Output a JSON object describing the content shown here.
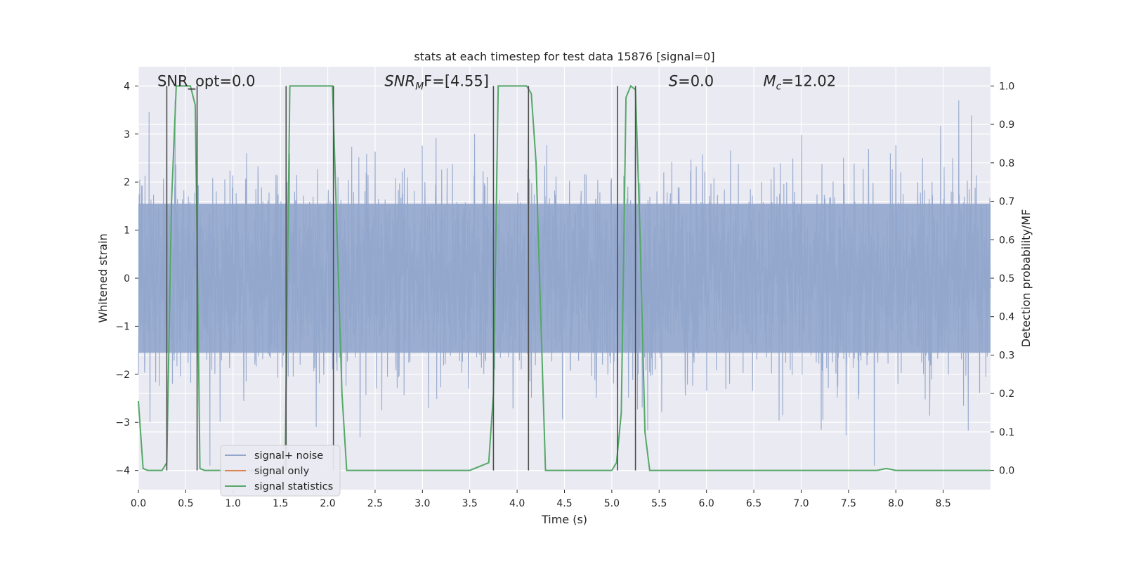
{
  "chart_data": {
    "type": "line",
    "title": "stats at each timestep for test data 15876 [signal=0]",
    "xlabel": "Time (s)",
    "ylabel": "Whitened strain",
    "y2label": "Detection probability/MF",
    "xlim": [
      0,
      9.0
    ],
    "ylim": [
      -4.4,
      4.4
    ],
    "y2lim": [
      -0.05,
      1.05
    ],
    "x_ticks": [
      0.0,
      0.5,
      1.0,
      1.5,
      2.0,
      2.5,
      3.0,
      3.5,
      4.0,
      4.5,
      5.0,
      5.5,
      6.0,
      6.5,
      7.0,
      7.5,
      8.0,
      8.5
    ],
    "x_tick_labels": [
      "0.0",
      "0.5",
      "1.0",
      "1.5",
      "2.0",
      "2.5",
      "3.0",
      "3.5",
      "4.0",
      "4.5",
      "5.0",
      "5.5",
      "6.0",
      "6.5",
      "7.0",
      "7.5",
      "8.0",
      "8.5"
    ],
    "y_ticks": [
      -4,
      -3,
      -2,
      -1,
      0,
      1,
      2,
      3,
      4
    ],
    "y_tick_labels": [
      "−4",
      "−3",
      "−2",
      "−1",
      "0",
      "1",
      "2",
      "3",
      "4"
    ],
    "y2_ticks": [
      0.0,
      0.1,
      0.2,
      0.3,
      0.4,
      0.5,
      0.6,
      0.7,
      0.8,
      0.9,
      1.0
    ],
    "y2_tick_labels": [
      "0.0",
      "0.1",
      "0.2",
      "0.3",
      "0.4",
      "0.5",
      "0.6",
      "0.7",
      "0.8",
      "0.9",
      "1.0"
    ],
    "grid": true,
    "legend_position": "lower-left",
    "annotations": [
      {
        "text": "SNR_opt=0.0",
        "x": 0.2,
        "y": 4.1
      },
      {
        "text": "SNR_MF=[4.55]",
        "x": 2.6,
        "y": 4.1,
        "main": "SNR",
        "sub": "M",
        "tail": "F=[4.55]"
      },
      {
        "text": "S=0.0",
        "x": 5.6,
        "y": 4.1,
        "main": "S",
        "tail": "=0.0"
      },
      {
        "text": "M_c=12.02",
        "x": 6.6,
        "y": 4.1,
        "main": "M",
        "sub": "c",
        "tail": "=12.02"
      }
    ],
    "series": [
      {
        "name": "signal+ noise",
        "color": "#92a6cc",
        "axis": "left",
        "description": "dense whitened noise trace, amplitude mostly within ±1.6, spikes up to ~±4"
      },
      {
        "name": "signal only",
        "color": "#dd8452",
        "axis": "left",
        "x": [],
        "y": []
      },
      {
        "name": "signal statistics",
        "color": "#55a868",
        "axis": "right",
        "x": [
          0.0,
          0.05,
          0.1,
          0.15,
          0.2,
          0.25,
          0.3,
          0.35,
          0.4,
          0.45,
          0.5,
          0.55,
          0.6,
          0.62,
          0.65,
          0.7,
          0.8,
          1.0,
          1.2,
          1.4,
          1.5,
          1.55,
          1.6,
          1.65,
          1.8,
          2.0,
          2.05,
          2.1,
          2.15,
          2.2,
          2.4,
          3.0,
          3.5,
          3.7,
          3.75,
          3.8,
          3.9,
          4.0,
          4.1,
          4.15,
          4.2,
          4.25,
          4.3,
          4.5,
          5.0,
          5.05,
          5.1,
          5.15,
          5.2,
          5.25,
          5.3,
          5.35,
          5.4,
          5.5,
          6.0,
          7.0,
          7.5,
          7.8,
          7.9,
          8.0,
          8.5,
          9.0
        ],
        "y": [
          0.18,
          0.005,
          0.0,
          0.0,
          0.0,
          0.0,
          0.02,
          0.7,
          1.0,
          1.0,
          1.0,
          1.0,
          0.95,
          0.6,
          0.005,
          0.0,
          0.0,
          0.0,
          0.0,
          0.0,
          0.0,
          0.02,
          1.0,
          1.0,
          1.0,
          1.0,
          1.0,
          0.6,
          0.2,
          0.0,
          0.0,
          0.0,
          0.0,
          0.02,
          0.2,
          1.0,
          1.0,
          1.0,
          1.0,
          0.98,
          0.8,
          0.4,
          0.0,
          0.0,
          0.0,
          0.02,
          0.15,
          0.97,
          1.0,
          0.99,
          0.6,
          0.1,
          0.0,
          0.0,
          0.0,
          0.0,
          0.0,
          0.0,
          0.005,
          0.0,
          0.0,
          0.0
        ]
      }
    ],
    "vertical_lines": [
      {
        "x": 0.3,
        "color": "#4d4d4d"
      },
      {
        "x": 0.62,
        "color": "#4d4d4d"
      },
      {
        "x": 1.56,
        "color": "#4d4d4d"
      },
      {
        "x": 2.06,
        "color": "#4d4d4d"
      },
      {
        "x": 3.75,
        "color": "#4d4d4d"
      },
      {
        "x": 4.12,
        "color": "#4d4d4d"
      },
      {
        "x": 5.06,
        "color": "#4d4d4d"
      },
      {
        "x": 5.25,
        "color": "#4d4d4d"
      }
    ],
    "background_color": "#eaeaf2",
    "grid_color": "#ffffff"
  }
}
